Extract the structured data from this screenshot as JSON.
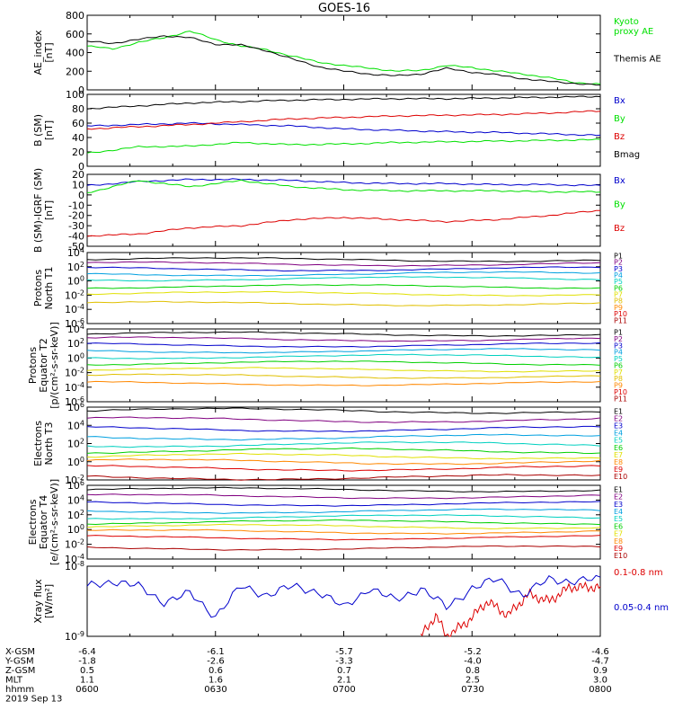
{
  "title": "GOES-16",
  "chart_data": [
    {
      "type": "line",
      "ylabel": "AE_index\n[nT]",
      "ylim": [
        0,
        800
      ],
      "yticks": [
        "0",
        "200",
        "400",
        "600",
        "800"
      ],
      "grid": false,
      "legend_position": "right",
      "series": [
        {
          "name": "Kyoto\nproxy AE",
          "color": "#00e000",
          "x": [
            0,
            0.05,
            0.1,
            0.15,
            0.2,
            0.25,
            0.3,
            0.35,
            0.4,
            0.45,
            0.5,
            0.55,
            0.6,
            0.65,
            0.7,
            0.75,
            0.8,
            0.85,
            0.9,
            0.95,
            1
          ],
          "y": [
            470,
            440,
            510,
            560,
            630,
            540,
            470,
            430,
            360,
            300,
            260,
            235,
            200,
            210,
            260,
            240,
            200,
            170,
            130,
            80,
            60
          ]
        },
        {
          "name": "Themis AE",
          "color": "#000000",
          "x": [
            0,
            0.05,
            0.1,
            0.15,
            0.2,
            0.25,
            0.3,
            0.35,
            0.4,
            0.45,
            0.5,
            0.55,
            0.6,
            0.65,
            0.7,
            0.75,
            0.8,
            0.85,
            0.9,
            0.95,
            1
          ],
          "y": [
            520,
            500,
            540,
            580,
            560,
            490,
            480,
            420,
            330,
            250,
            200,
            170,
            150,
            170,
            230,
            190,
            160,
            120,
            90,
            70,
            50
          ]
        }
      ]
    },
    {
      "type": "line",
      "ylabel": "B (SM)\n[nT]",
      "ylim": [
        0,
        100
      ],
      "yticks": [
        "0",
        "20",
        "40",
        "60",
        "80",
        "100"
      ],
      "grid": false,
      "legend_position": "right",
      "series": [
        {
          "name": "Bx",
          "color": "#0000cc",
          "x": [
            0,
            0.1,
            0.2,
            0.3,
            0.4,
            0.5,
            0.6,
            0.7,
            0.8,
            0.9,
            1
          ],
          "y": [
            56,
            58,
            60,
            58,
            56,
            52,
            50,
            48,
            47,
            45,
            43
          ]
        },
        {
          "name": "By",
          "color": "#00e000",
          "x": [
            0,
            0.1,
            0.2,
            0.3,
            0.4,
            0.5,
            0.6,
            0.7,
            0.8,
            0.9,
            1
          ],
          "y": [
            18,
            27,
            28,
            33,
            30,
            31,
            33,
            34,
            35,
            36,
            37
          ]
        },
        {
          "name": "Bz",
          "color": "#dd0000",
          "x": [
            0,
            0.1,
            0.2,
            0.3,
            0.4,
            0.5,
            0.6,
            0.7,
            0.8,
            0.9,
            1
          ],
          "y": [
            52,
            55,
            58,
            62,
            66,
            68,
            70,
            71,
            72,
            74,
            77
          ]
        },
        {
          "name": "Bmag",
          "color": "#000000",
          "x": [
            0,
            0.1,
            0.2,
            0.3,
            0.4,
            0.5,
            0.6,
            0.7,
            0.8,
            0.9,
            1
          ],
          "y": [
            80,
            84,
            88,
            90,
            92,
            93,
            94,
            94,
            95,
            96,
            97
          ]
        }
      ]
    },
    {
      "type": "line",
      "ylabel": "B (SM)-IGRF (SM)\n[nT]",
      "ylim": [
        -50,
        20
      ],
      "yticks": [
        "-50",
        "-40",
        "-30",
        "-20",
        "-10",
        "0",
        "10",
        "20"
      ],
      "grid": false,
      "legend_position": "right",
      "series": [
        {
          "name": "Bx",
          "color": "#0000cc",
          "x": [
            0,
            0.1,
            0.2,
            0.3,
            0.4,
            0.5,
            0.6,
            0.7,
            0.8,
            0.9,
            1
          ],
          "y": [
            9,
            13,
            15,
            15,
            14,
            12,
            11,
            11,
            10,
            10,
            9
          ]
        },
        {
          "name": "By",
          "color": "#00e000",
          "x": [
            0,
            0.1,
            0.2,
            0.3,
            0.4,
            0.5,
            0.6,
            0.7,
            0.8,
            0.9,
            1
          ],
          "y": [
            2,
            14,
            8,
            14,
            8,
            5,
            4,
            4,
            4,
            3,
            3
          ]
        },
        {
          "name": "Bz",
          "color": "#dd0000",
          "x": [
            0,
            0.1,
            0.2,
            0.3,
            0.4,
            0.5,
            0.6,
            0.7,
            0.8,
            0.9,
            1
          ],
          "y": [
            -40,
            -38,
            -32,
            -30,
            -24,
            -22,
            -24,
            -26,
            -24,
            -20,
            -15
          ]
        }
      ]
    },
    {
      "type": "line",
      "ylabel": "Protons\nNorth T1",
      "ylog": true,
      "ylim": [
        -6,
        4
      ],
      "yticks": [
        "10^4",
        "10^2",
        "10^0",
        "10^-2",
        "10^-4",
        "10^-6"
      ],
      "grid": false,
      "legend_position": "right",
      "series": [
        {
          "name": "P1",
          "color": "#000000",
          "log_level": 3.0
        },
        {
          "name": "P2",
          "color": "#800080",
          "log_level": 2.4
        },
        {
          "name": "P3",
          "color": "#0000cc",
          "log_level": 1.7
        },
        {
          "name": "P4",
          "color": "#00a0e0",
          "log_level": 1.0
        },
        {
          "name": "P5",
          "color": "#00d0c0",
          "log_level": 0.3
        },
        {
          "name": "P6",
          "color": "#00d000",
          "log_level": -0.8
        },
        {
          "name": "P7",
          "color": "#e0e000",
          "log_level": -1.8
        },
        {
          "name": "P8",
          "color": "#e0c000",
          "log_level": -3.2
        },
        {
          "name": "P9",
          "color": "#ff8800",
          "log_level": null
        },
        {
          "name": "P10",
          "color": "#dd0000",
          "log_level": null
        },
        {
          "name": "P11",
          "color": "#aa0000",
          "log_level": null
        }
      ]
    },
    {
      "type": "line",
      "ylabel": "Protons\nEquator T2\n[p/(cm²-s-sr-keV)]",
      "ylog": true,
      "ylim": [
        -6,
        4
      ],
      "yticks": [
        "10^4",
        "10^2",
        "10^0",
        "10^-2",
        "10^-4",
        "10^-6"
      ],
      "grid": false,
      "legend_position": "right",
      "series": [
        {
          "name": "P1",
          "color": "#000000",
          "log_level": 3.3
        },
        {
          "name": "P2",
          "color": "#800080",
          "log_level": 2.6
        },
        {
          "name": "P3",
          "color": "#0000cc",
          "log_level": 1.8
        },
        {
          "name": "P4",
          "color": "#00a0e0",
          "log_level": 1.0
        },
        {
          "name": "P5",
          "color": "#00d0c0",
          "log_level": 0.2
        },
        {
          "name": "P6",
          "color": "#00d000",
          "log_level": -0.7
        },
        {
          "name": "P7",
          "color": "#e0e000",
          "log_level": -1.6
        },
        {
          "name": "P8",
          "color": "#e0c000",
          "log_level": -2.5
        },
        {
          "name": "P9",
          "color": "#ff8800",
          "log_level": -3.5
        },
        {
          "name": "P10",
          "color": "#dd0000",
          "log_level": null
        },
        {
          "name": "P11",
          "color": "#aa0000",
          "log_level": null
        }
      ]
    },
    {
      "type": "line",
      "ylabel": "Electrons\nNorth T3",
      "ylog": true,
      "ylim": [
        -2,
        6
      ],
      "yticks": [
        "10^6",
        "10^4",
        "10^2",
        "10^0",
        "10^-2"
      ],
      "grid": false,
      "legend_position": "right",
      "series": [
        {
          "name": "E1",
          "color": "#000000",
          "log_level": 5.6
        },
        {
          "name": "E2",
          "color": "#800080",
          "log_level": 4.6
        },
        {
          "name": "E3",
          "color": "#0000cc",
          "log_level": 3.6
        },
        {
          "name": "E4",
          "color": "#00a0e0",
          "log_level": 2.7
        },
        {
          "name": "E5",
          "color": "#00d0c0",
          "log_level": 1.9
        },
        {
          "name": "E6",
          "color": "#00d000",
          "log_level": 1.2
        },
        {
          "name": "E7",
          "color": "#e0e000",
          "log_level": 0.6
        },
        {
          "name": "E8",
          "color": "#ff8800",
          "log_level": 0.0
        },
        {
          "name": "E9",
          "color": "#dd0000",
          "log_level": -0.7
        },
        {
          "name": "E10",
          "color": "#aa0000",
          "log_level": -1.7
        }
      ]
    },
    {
      "type": "line",
      "ylabel": "Electrons\nEquator T4\n[e/(cm²-s-sr-keV)]",
      "ylog": true,
      "ylim": [
        -4,
        6
      ],
      "yticks": [
        "10^6",
        "10^4",
        "10^2",
        "10^0",
        "10^-2",
        "10^-4"
      ],
      "grid": false,
      "legend_position": "right",
      "series": [
        {
          "name": "E1",
          "color": "#000000",
          "log_level": 5.4
        },
        {
          "name": "E2",
          "color": "#800080",
          "log_level": 4.5
        },
        {
          "name": "E3",
          "color": "#0000cc",
          "log_level": 3.5
        },
        {
          "name": "E4",
          "color": "#00a0e0",
          "log_level": 2.5
        },
        {
          "name": "E5",
          "color": "#00d0c0",
          "log_level": 1.7
        },
        {
          "name": "E6",
          "color": "#00d000",
          "log_level": 1.0
        },
        {
          "name": "E7",
          "color": "#e0e000",
          "log_level": 0.4
        },
        {
          "name": "E8",
          "color": "#ff8800",
          "log_level": -0.3
        },
        {
          "name": "E9",
          "color": "#dd0000",
          "log_level": -1.1
        },
        {
          "name": "E10",
          "color": "#aa0000",
          "log_level": -2.5
        }
      ]
    },
    {
      "type": "line",
      "ylabel": "Xray flux\n[W/m²]",
      "ylog": true,
      "ylim": [
        -9,
        -8
      ],
      "yticks": [
        "10^-8",
        "10^-9"
      ],
      "grid": false,
      "legend_position": "right",
      "series": [
        {
          "name": "0.1-0.8 nm",
          "color": "#dd0000",
          "x": [
            0.65,
            0.68,
            0.7,
            0.74,
            0.78,
            0.82,
            0.86,
            0.9,
            0.94,
            0.98,
            1
          ],
          "y": [
            -9.0,
            -8.7,
            -9.0,
            -8.8,
            -8.5,
            -8.7,
            -8.4,
            -8.5,
            -8.3,
            -8.3,
            -8.3
          ]
        },
        {
          "name": "0.05-0.4 nm",
          "color": "#0000cc",
          "x": [
            0,
            0.05,
            0.1,
            0.15,
            0.2,
            0.25,
            0.3,
            0.35,
            0.4,
            0.45,
            0.5,
            0.55,
            0.6,
            0.65,
            0.7,
            0.75,
            0.8,
            0.85,
            0.9,
            0.95,
            1
          ],
          "y": [
            -8.3,
            -8.2,
            -8.3,
            -8.5,
            -8.4,
            -8.7,
            -8.3,
            -8.4,
            -8.3,
            -8.35,
            -8.6,
            -8.3,
            -8.5,
            -8.3,
            -8.6,
            -8.3,
            -8.2,
            -8.4,
            -8.2,
            -8.2,
            -8.2
          ]
        }
      ]
    }
  ],
  "ephemeris": {
    "rows": [
      {
        "label": "X-GSM",
        "values": [
          "-6.4",
          "-6.1",
          "-5.7",
          "-5.2",
          "-4.6"
        ]
      },
      {
        "label": "Y-GSM",
        "values": [
          "-1.8",
          "-2.6",
          "-3.3",
          "-4.0",
          "-4.7"
        ]
      },
      {
        "label": "Z-GSM",
        "values": [
          "0.5",
          "0.6",
          "0.7",
          "0.8",
          "0.9"
        ]
      },
      {
        "label": "MLT",
        "values": [
          "1.1",
          "1.6",
          "2.1",
          "2.5",
          "3.0"
        ]
      },
      {
        "label": "hhmm",
        "values": [
          "0600",
          "0630",
          "0700",
          "0730",
          "0800"
        ]
      }
    ],
    "date": "2019 Sep 13"
  }
}
